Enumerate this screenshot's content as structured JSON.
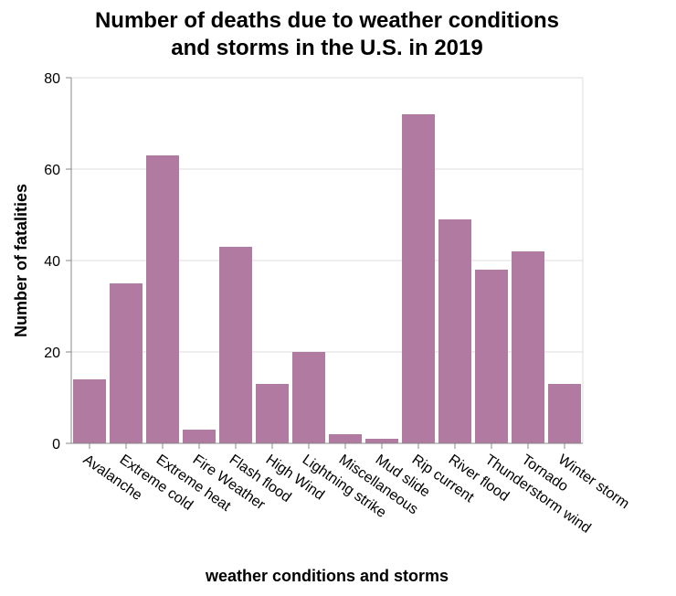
{
  "chart_data": {
    "type": "bar",
    "title_lines": [
      "Number of deaths due to weather conditions",
      "and storms in the U.S. in 2019"
    ],
    "xlabel": "weather conditions and storms",
    "ylabel": "Number of fatalities",
    "ylim": [
      0,
      80
    ],
    "yticks": [
      0,
      20,
      40,
      60,
      80
    ],
    "grid": true,
    "bar_color": "#b07aa1",
    "categories": [
      "Avalanche",
      "Extreme cold",
      "Extreme heat",
      "Fire Weather",
      "Flash flood",
      "High Wind",
      "Lightning strike",
      "Miscellaneous",
      "Mud slide",
      "Rip current",
      "River flood",
      "Thunderstorm wind",
      "Tornado",
      "Winter storm"
    ],
    "values": [
      14,
      35,
      63,
      3,
      43,
      13,
      20,
      2,
      1,
      72,
      49,
      38,
      42,
      13
    ]
  }
}
